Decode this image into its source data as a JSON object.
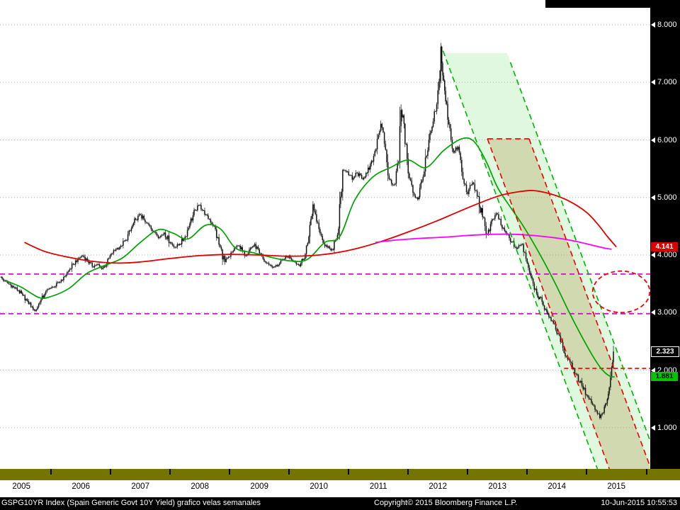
{
  "footer": {
    "left": "GSPG10YR Index (Spain Generic Govt 10Y Yield) grafico velas semanales",
    "center": "Copyright© 2015 Bloomberg Finance L.P.",
    "right": "10-Jun-2015 10:55:53"
  },
  "axis": {
    "years": [
      {
        "year": 2005,
        "label": "2005"
      },
      {
        "year": 2006,
        "label": "2006"
      },
      {
        "year": 2007,
        "label": "2007"
      },
      {
        "year": 2008,
        "label": "2008"
      },
      {
        "year": 2009,
        "label": "2009"
      },
      {
        "year": 2010,
        "label": "2010"
      },
      {
        "year": 2011,
        "label": "2011"
      },
      {
        "year": 2012,
        "label": "2012"
      },
      {
        "year": 2013,
        "label": "2013"
      },
      {
        "year": 2014,
        "label": "2014"
      },
      {
        "year": 2015,
        "label": "2015"
      }
    ],
    "y_ticks": [
      {
        "v": 8,
        "label": "8.000"
      },
      {
        "v": 7,
        "label": "7.000"
      },
      {
        "v": 6,
        "label": "6.000"
      },
      {
        "v": 5,
        "label": "5.000"
      },
      {
        "v": 4,
        "label": "4.000"
      },
      {
        "v": 3,
        "label": "3.000"
      },
      {
        "v": 2,
        "label": "2.000"
      },
      {
        "v": 1,
        "label": "1.000"
      }
    ]
  },
  "price_labels": [
    {
      "label": "4.141",
      "v": 4.141,
      "bg": "#dd0000",
      "fg": "#ffffff",
      "border": "none",
      "name": "price-label-red-ma"
    },
    {
      "label": "2.323",
      "v": 2.323,
      "bg": "#000000",
      "fg": "#ffffff",
      "border": "1px solid #ffffff",
      "name": "price-label-last"
    },
    {
      "label": "1.881",
      "v": 1.881,
      "bg": "#00c400",
      "fg": "#000000",
      "border": "none",
      "name": "price-label-green-ma"
    }
  ],
  "chart_data": {
    "type": "candlestick",
    "title": "GSPG10YR Index (Spain Generic Govt 10Y Yield)",
    "subtitle": "grafico velas semanales",
    "interval": "weekly",
    "x_domain_years": [
      2005.14,
      2016.07
    ],
    "ylim": [
      0.3,
      8.4
    ],
    "close_anchors": [
      [
        2005.14,
        3.62
      ],
      [
        2005.21,
        3.55
      ],
      [
        2005.29,
        3.5
      ],
      [
        2005.37,
        3.44
      ],
      [
        2005.45,
        3.38
      ],
      [
        2005.52,
        3.3
      ],
      [
        2005.6,
        3.2
      ],
      [
        2005.68,
        3.1
      ],
      [
        2005.73,
        3.03
      ],
      [
        2005.81,
        3.18
      ],
      [
        2005.89,
        3.32
      ],
      [
        2005.97,
        3.42
      ],
      [
        2006.05,
        3.44
      ],
      [
        2006.13,
        3.52
      ],
      [
        2006.21,
        3.62
      ],
      [
        2006.29,
        3.72
      ],
      [
        2006.37,
        3.84
      ],
      [
        2006.45,
        3.94
      ],
      [
        2006.53,
        3.99
      ],
      [
        2006.61,
        3.9
      ],
      [
        2006.69,
        3.8
      ],
      [
        2006.77,
        3.84
      ],
      [
        2006.85,
        3.76
      ],
      [
        2006.93,
        3.84
      ],
      [
        2007.01,
        4.02
      ],
      [
        2007.09,
        4.1
      ],
      [
        2007.17,
        4.16
      ],
      [
        2007.25,
        4.26
      ],
      [
        2007.33,
        4.42
      ],
      [
        2007.42,
        4.62
      ],
      [
        2007.5,
        4.7
      ],
      [
        2007.58,
        4.57
      ],
      [
        2007.66,
        4.5
      ],
      [
        2007.74,
        4.4
      ],
      [
        2007.82,
        4.31
      ],
      [
        2007.9,
        4.39
      ],
      [
        2008.0,
        4.22
      ],
      [
        2008.08,
        4.13
      ],
      [
        2008.16,
        4.19
      ],
      [
        2008.25,
        4.32
      ],
      [
        2008.33,
        4.55
      ],
      [
        2008.42,
        4.78
      ],
      [
        2008.5,
        4.87
      ],
      [
        2008.58,
        4.7
      ],
      [
        2008.66,
        4.62
      ],
      [
        2008.74,
        4.5
      ],
      [
        2008.82,
        4.18
      ],
      [
        2008.92,
        3.88
      ],
      [
        2009.0,
        3.97
      ],
      [
        2009.08,
        4.12
      ],
      [
        2009.16,
        4.16
      ],
      [
        2009.25,
        3.99
      ],
      [
        2009.33,
        4.09
      ],
      [
        2009.42,
        4.19
      ],
      [
        2009.5,
        4.03
      ],
      [
        2009.58,
        3.89
      ],
      [
        2009.66,
        3.83
      ],
      [
        2009.74,
        3.79
      ],
      [
        2009.82,
        3.83
      ],
      [
        2009.92,
        3.93
      ],
      [
        2010.0,
        3.99
      ],
      [
        2010.08,
        3.89
      ],
      [
        2010.16,
        3.83
      ],
      [
        2010.25,
        3.93
      ],
      [
        2010.33,
        4.32
      ],
      [
        2010.4,
        4.88
      ],
      [
        2010.48,
        4.56
      ],
      [
        2010.56,
        4.26
      ],
      [
        2010.64,
        4.13
      ],
      [
        2010.74,
        4.09
      ],
      [
        2010.83,
        4.46
      ],
      [
        2010.9,
        5.48
      ],
      [
        2010.98,
        5.45
      ],
      [
        2011.06,
        5.31
      ],
      [
        2011.14,
        5.43
      ],
      [
        2011.22,
        5.33
      ],
      [
        2011.31,
        5.43
      ],
      [
        2011.4,
        5.62
      ],
      [
        2011.48,
        6.02
      ],
      [
        2011.54,
        6.28
      ],
      [
        2011.6,
        5.93
      ],
      [
        2011.68,
        5.32
      ],
      [
        2011.76,
        5.22
      ],
      [
        2011.84,
        5.62
      ],
      [
        2011.88,
        6.52
      ],
      [
        2011.93,
        6.28
      ],
      [
        2012.0,
        5.42
      ],
      [
        2012.08,
        5.08
      ],
      [
        2012.16,
        4.97
      ],
      [
        2012.25,
        5.36
      ],
      [
        2012.33,
        5.82
      ],
      [
        2012.42,
        6.32
      ],
      [
        2012.48,
        6.62
      ],
      [
        2012.52,
        7.02
      ],
      [
        2012.55,
        7.62
      ],
      [
        2012.58,
        7.12
      ],
      [
        2012.63,
        6.67
      ],
      [
        2012.7,
        6.2
      ],
      [
        2012.76,
        5.78
      ],
      [
        2012.84,
        5.88
      ],
      [
        2012.92,
        5.32
      ],
      [
        2013.0,
        5.06
      ],
      [
        2013.08,
        5.26
      ],
      [
        2013.16,
        5.02
      ],
      [
        2013.25,
        4.66
      ],
      [
        2013.33,
        4.36
      ],
      [
        2013.42,
        4.62
      ],
      [
        2013.5,
        4.71
      ],
      [
        2013.58,
        4.46
      ],
      [
        2013.66,
        4.36
      ],
      [
        2013.74,
        4.23
      ],
      [
        2013.82,
        4.11
      ],
      [
        2013.92,
        4.19
      ],
      [
        2014.0,
        3.86
      ],
      [
        2014.08,
        3.59
      ],
      [
        2014.16,
        3.33
      ],
      [
        2014.25,
        3.19
      ],
      [
        2014.33,
        3.01
      ],
      [
        2014.42,
        2.86
      ],
      [
        2014.5,
        2.63
      ],
      [
        2014.58,
        2.49
      ],
      [
        2014.66,
        2.23
      ],
      [
        2014.74,
        2.13
      ],
      [
        2014.82,
        1.93
      ],
      [
        2014.92,
        1.73
      ],
      [
        2015.0,
        1.56
      ],
      [
        2015.08,
        1.43
      ],
      [
        2015.16,
        1.29
      ],
      [
        2015.22,
        1.17
      ],
      [
        2015.28,
        1.26
      ],
      [
        2015.33,
        1.42
      ],
      [
        2015.38,
        1.7
      ],
      [
        2015.42,
        2.05
      ],
      [
        2015.45,
        2.323
      ]
    ],
    "moving_averages": [
      {
        "name": "ma-short-green",
        "color": "#00a400",
        "width": 1.7,
        "points": [
          [
            2005.25,
            3.55
          ],
          [
            2005.5,
            3.44
          ],
          [
            2005.8,
            3.26
          ],
          [
            2006.0,
            3.28
          ],
          [
            2006.3,
            3.42
          ],
          [
            2006.6,
            3.68
          ],
          [
            2006.9,
            3.82
          ],
          [
            2007.2,
            3.95
          ],
          [
            2007.5,
            4.22
          ],
          [
            2007.8,
            4.44
          ],
          [
            2008.05,
            4.38
          ],
          [
            2008.3,
            4.28
          ],
          [
            2008.6,
            4.52
          ],
          [
            2008.85,
            4.45
          ],
          [
            2009.1,
            4.12
          ],
          [
            2009.4,
            4.04
          ],
          [
            2009.7,
            3.96
          ],
          [
            2010.0,
            3.9
          ],
          [
            2010.3,
            3.92
          ],
          [
            2010.6,
            4.22
          ],
          [
            2010.85,
            4.32
          ],
          [
            2011.1,
            4.95
          ],
          [
            2011.4,
            5.35
          ],
          [
            2011.7,
            5.52
          ],
          [
            2012.0,
            5.65
          ],
          [
            2012.3,
            5.52
          ],
          [
            2012.6,
            5.82
          ],
          [
            2012.9,
            6.02
          ],
          [
            2013.1,
            5.98
          ],
          [
            2013.3,
            5.65
          ],
          [
            2013.5,
            5.18
          ],
          [
            2013.7,
            4.86
          ],
          [
            2013.9,
            4.56
          ],
          [
            2014.1,
            4.22
          ],
          [
            2014.3,
            3.85
          ],
          [
            2014.5,
            3.45
          ],
          [
            2014.7,
            3.02
          ],
          [
            2014.9,
            2.62
          ],
          [
            2015.1,
            2.25
          ],
          [
            2015.25,
            2.02
          ],
          [
            2015.38,
            1.9
          ],
          [
            2015.47,
            1.881
          ]
        ]
      },
      {
        "name": "ma-long-red",
        "color": "#e00000",
        "width": 1.8,
        "points": [
          [
            2005.55,
            4.22
          ],
          [
            2005.9,
            4.06
          ],
          [
            2006.3,
            3.96
          ],
          [
            2006.7,
            3.89
          ],
          [
            2007.1,
            3.86
          ],
          [
            2007.5,
            3.88
          ],
          [
            2008.0,
            3.94
          ],
          [
            2008.5,
            3.99
          ],
          [
            2009.0,
            4.01
          ],
          [
            2009.5,
            4.0
          ],
          [
            2010.0,
            3.98
          ],
          [
            2010.5,
            4.0
          ],
          [
            2011.0,
            4.08
          ],
          [
            2011.5,
            4.22
          ],
          [
            2012.0,
            4.4
          ],
          [
            2012.5,
            4.6
          ],
          [
            2013.0,
            4.82
          ],
          [
            2013.5,
            5.02
          ],
          [
            2013.8,
            5.09
          ],
          [
            2014.1,
            5.12
          ],
          [
            2014.4,
            5.06
          ],
          [
            2014.7,
            4.94
          ],
          [
            2015.0,
            4.74
          ],
          [
            2015.2,
            4.52
          ],
          [
            2015.35,
            4.32
          ],
          [
            2015.5,
            4.141
          ]
        ]
      },
      {
        "name": "ma-flat-magenta",
        "color": "#ff00ff",
        "width": 1.8,
        "points": [
          [
            2011.45,
            4.22
          ],
          [
            2011.8,
            4.26
          ],
          [
            2012.2,
            4.29
          ],
          [
            2012.6,
            4.31
          ],
          [
            2013.0,
            4.34
          ],
          [
            2013.4,
            4.36
          ],
          [
            2013.8,
            4.36
          ],
          [
            2014.2,
            4.33
          ],
          [
            2014.6,
            4.28
          ],
          [
            2014.9,
            4.22
          ],
          [
            2015.1,
            4.17
          ],
          [
            2015.3,
            4.12
          ],
          [
            2015.42,
            4.1
          ]
        ]
      }
    ],
    "levels": [
      {
        "name": "magenta-resistance-upper",
        "v": 3.67,
        "color": "#cc00cc",
        "dash": "7,5",
        "t_from": 2005.14,
        "t_to": 2016.07
      },
      {
        "name": "magenta-resistance-lower",
        "v": 2.98,
        "color": "#cc00cc",
        "dash": "7,5",
        "t_from": 2005.14,
        "t_to": 2016.07
      },
      {
        "name": "red-support",
        "v": 2.03,
        "color": "#ee0000",
        "dash": "6,4",
        "t_from": 2014.62,
        "t_to": 2016.07
      }
    ],
    "channel": {
      "apex_v": 7.51,
      "slope_v_per_year": -2.8,
      "lines": [
        {
          "name": "channel-outer-lower-green",
          "t_at_apex_v": 2012.6,
          "v_start": 7.55,
          "color": "#00b400"
        },
        {
          "name": "channel-inner-lower-red",
          "t_at_apex_v": 2012.8,
          "v_start": 6.02,
          "color": "#ee0000"
        },
        {
          "name": "channel-inner-upper-red",
          "t_at_apex_v": 2013.5,
          "v_start": 6.02,
          "color": "#ee0000"
        },
        {
          "name": "channel-outer-upper-green",
          "t_at_apex_v": 2013.66,
          "v_start": 7.35,
          "color": "#00b400"
        }
      ],
      "outer_fill": "rgba(0,190,0,0.12)",
      "inner_fill": "rgba(175,155,75,0.32)"
    },
    "ellipse": {
      "t": 2015.58,
      "v": 3.36,
      "rt": 0.48,
      "rv": 0.36,
      "color": "#ee0000"
    }
  }
}
